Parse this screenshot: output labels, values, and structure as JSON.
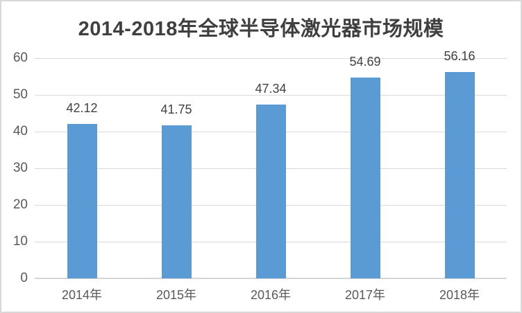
{
  "chart_data": {
    "type": "bar",
    "title": "2014-2018年全球半导体激光器市场规模",
    "categories": [
      "2014年",
      "2015年",
      "2016年",
      "2017年",
      "2018年"
    ],
    "values": [
      42.12,
      41.75,
      47.34,
      54.69,
      56.16
    ],
    "data_labels": [
      "42.12",
      "41.75",
      "47.34",
      "54.69",
      "56.16"
    ],
    "xlabel": "",
    "ylabel": "",
    "ylim": [
      0,
      60
    ],
    "y_ticks": [
      0,
      10,
      20,
      30,
      40,
      50,
      60
    ],
    "grid": true,
    "legend_position": "none",
    "bar_color": "#5b9bd5",
    "gridline_color": "#d9d9d9",
    "axis_line_color": "#d6d6d6",
    "title_color": "#3f3f3f",
    "tick_label_color": "#595959",
    "data_label_color": "#404040",
    "background_color": "#ffffff",
    "border_color": "#d8d8d8"
  }
}
